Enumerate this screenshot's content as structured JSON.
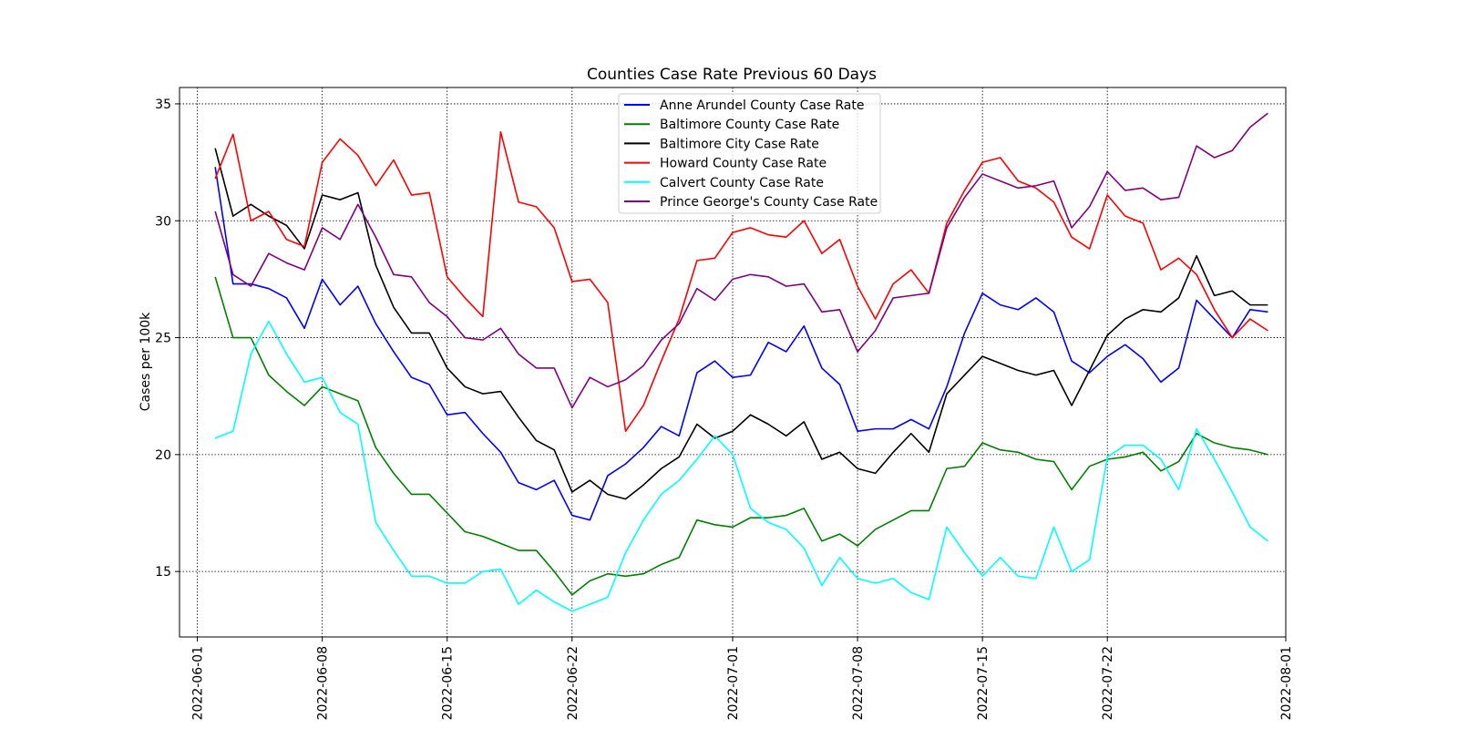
{
  "chart_data": {
    "type": "line",
    "title": "Counties Case Rate Previous 60 Days",
    "xlabel": "",
    "ylabel": "Cases per 100k",
    "x_start": "2022-06-02",
    "x_end": "2022-07-31",
    "xlim": [
      "2022-05-31",
      "2022-08-01"
    ],
    "ylim": [
      12.2,
      35.7
    ],
    "yticks": [
      15,
      20,
      25,
      30,
      35
    ],
    "ytick_labels": [
      "15",
      "20",
      "25",
      "30",
      "35"
    ],
    "xticks": [
      "2022-06-01",
      "2022-06-08",
      "2022-06-15",
      "2022-06-22",
      "2022-07-01",
      "2022-07-08",
      "2022-07-15",
      "2022-07-22",
      "2022-08-01"
    ],
    "xtick_labels": [
      "2022-06-01",
      "2022-06-08",
      "2022-06-15",
      "2022-06-22",
      "2022-07-01",
      "2022-07-08",
      "2022-07-15",
      "2022-07-22",
      "2022-08-01"
    ],
    "grid": true,
    "legend_position": "top-center",
    "series": [
      {
        "name": "Anne Arundel County Case Rate",
        "color": "#0000ff",
        "values": [
          32.3,
          27.3,
          27.3,
          27.1,
          26.7,
          25.4,
          27.5,
          26.4,
          27.2,
          25.6,
          24.4,
          23.3,
          23.0,
          21.7,
          21.8,
          20.9,
          20.1,
          18.8,
          18.5,
          18.9,
          17.4,
          17.2,
          19.1,
          19.6,
          20.3,
          21.2,
          20.8,
          23.5,
          24.0,
          23.3,
          23.4,
          24.8,
          24.4,
          25.5,
          23.7,
          23.0,
          21.0,
          21.1,
          21.1,
          21.5,
          21.1,
          22.9,
          25.2,
          26.9,
          26.4,
          26.2,
          26.7,
          26.1,
          24.0,
          23.5,
          24.2,
          24.7,
          24.1,
          23.1,
          23.7,
          26.6,
          25.8,
          25.0,
          26.2,
          26.1
        ]
      },
      {
        "name": "Baltimore County Case Rate",
        "color": "#008000",
        "values": [
          27.6,
          25.0,
          25.0,
          23.4,
          22.7,
          22.1,
          22.9,
          22.6,
          22.3,
          20.3,
          19.2,
          18.3,
          18.3,
          17.5,
          16.7,
          16.5,
          16.2,
          15.9,
          15.9,
          15.0,
          14.0,
          14.6,
          14.9,
          14.8,
          14.9,
          15.3,
          15.6,
          17.2,
          17.0,
          16.9,
          17.3,
          17.3,
          17.4,
          17.7,
          16.3,
          16.6,
          16.1,
          16.8,
          17.2,
          17.6,
          17.6,
          19.4,
          19.5,
          20.5,
          20.2,
          20.1,
          19.8,
          19.7,
          18.5,
          19.5,
          19.8,
          19.9,
          20.1,
          19.3,
          19.7,
          20.9,
          20.5,
          20.3,
          20.2,
          20.0
        ]
      },
      {
        "name": "Baltimore City Case Rate",
        "color": "#000000",
        "values": [
          33.1,
          30.2,
          30.7,
          30.2,
          29.8,
          28.8,
          31.1,
          30.9,
          31.2,
          28.1,
          26.3,
          25.2,
          25.2,
          23.7,
          22.9,
          22.6,
          22.7,
          21.6,
          20.6,
          20.2,
          18.4,
          18.9,
          18.3,
          18.1,
          18.7,
          19.4,
          19.9,
          21.3,
          20.7,
          21.0,
          21.7,
          21.3,
          20.8,
          21.4,
          19.8,
          20.1,
          19.4,
          19.2,
          20.1,
          20.9,
          20.1,
          22.6,
          23.4,
          24.2,
          23.9,
          23.6,
          23.4,
          23.6,
          22.1,
          23.6,
          25.1,
          25.8,
          26.2,
          26.1,
          26.7,
          28.5,
          26.8,
          27.0,
          26.4,
          26.4
        ]
      },
      {
        "name": "Howard County Case Rate",
        "color": "#ff0000",
        "values": [
          31.8,
          33.7,
          30.0,
          30.4,
          29.2,
          28.9,
          32.5,
          33.5,
          32.8,
          31.5,
          32.6,
          31.1,
          31.2,
          27.6,
          26.7,
          25.9,
          33.8,
          30.8,
          30.6,
          29.7,
          27.4,
          27.5,
          26.5,
          21.0,
          22.1,
          24.0,
          25.8,
          28.3,
          28.4,
          29.5,
          29.7,
          29.4,
          29.3,
          30.0,
          28.6,
          29.2,
          27.2,
          25.8,
          27.3,
          27.9,
          26.9,
          29.9,
          31.3,
          32.5,
          32.7,
          31.7,
          31.4,
          30.8,
          29.3,
          28.8,
          31.1,
          30.2,
          29.9,
          27.9,
          28.4,
          27.7,
          26.2,
          25.0,
          25.8,
          25.3
        ]
      },
      {
        "name": "Calvert County Case Rate",
        "color": "#00ffff",
        "values": [
          20.7,
          21.0,
          24.3,
          25.7,
          24.3,
          23.1,
          23.3,
          21.8,
          21.3,
          17.1,
          15.9,
          14.8,
          14.8,
          14.5,
          14.5,
          15.0,
          15.1,
          13.6,
          14.2,
          13.7,
          13.3,
          13.6,
          13.9,
          15.8,
          17.2,
          18.3,
          18.9,
          19.8,
          20.8,
          20.0,
          17.7,
          17.1,
          16.8,
          16.0,
          14.4,
          15.6,
          14.7,
          14.5,
          14.7,
          14.1,
          13.8,
          16.9,
          15.8,
          14.8,
          15.6,
          14.8,
          14.7,
          16.9,
          15.0,
          15.5,
          19.9,
          20.4,
          20.4,
          19.8,
          18.5,
          21.1,
          19.8,
          18.4,
          16.9,
          16.3
        ]
      },
      {
        "name": "Prince George's County Case Rate",
        "color": "#800080",
        "values": [
          30.4,
          27.7,
          27.2,
          28.6,
          28.2,
          27.9,
          29.7,
          29.2,
          30.7,
          29.3,
          27.7,
          27.6,
          26.5,
          25.9,
          25.0,
          24.9,
          25.4,
          24.3,
          23.7,
          23.7,
          22.0,
          23.3,
          22.9,
          23.2,
          23.8,
          24.9,
          25.6,
          27.1,
          26.6,
          27.5,
          27.7,
          27.6,
          27.2,
          27.3,
          26.1,
          26.2,
          24.4,
          25.3,
          26.7,
          26.8,
          26.9,
          29.7,
          31.0,
          32.0,
          31.7,
          31.4,
          31.5,
          31.7,
          29.7,
          30.6,
          32.1,
          31.3,
          31.4,
          30.9,
          31.0,
          33.2,
          32.7,
          33.0,
          34.0,
          34.6
        ]
      }
    ]
  }
}
